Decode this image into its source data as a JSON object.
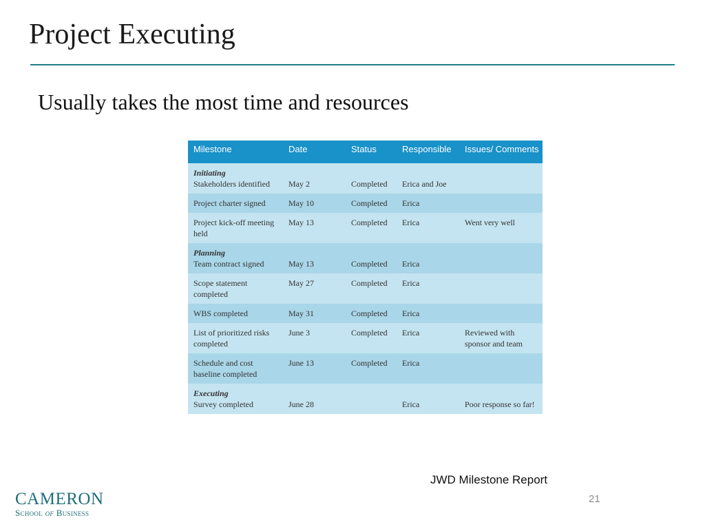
{
  "slide": {
    "title": "Project Executing",
    "subtitle": "Usually takes the most time and resources",
    "caption": "JWD Milestone Report",
    "page_number": "21"
  },
  "logo": {
    "line1": "CAMERON",
    "line2_a": "School",
    "line2_b": "of",
    "line2_c": "Business"
  },
  "table": {
    "headers": [
      "Milestone",
      "Date",
      "Status",
      "Responsible",
      "Issues/ Comments"
    ],
    "rows": [
      {
        "phase": "Initiating",
        "milestone": "Stakeholders identified",
        "date": "May 2",
        "status": "Completed",
        "responsible": "Erica and Joe",
        "comments": ""
      },
      {
        "phase": "",
        "milestone": "Project charter signed",
        "date": "May 10",
        "status": "Completed",
        "responsible": "Erica",
        "comments": ""
      },
      {
        "phase": "",
        "milestone": "Project kick-off meeting held",
        "date": "May 13",
        "status": "Completed",
        "responsible": "Erica",
        "comments": "Went very well"
      },
      {
        "phase": "Planning",
        "milestone": "Team contract signed",
        "date": "May 13",
        "status": "Completed",
        "responsible": "Erica",
        "comments": ""
      },
      {
        "phase": "",
        "milestone": "Scope statement completed",
        "date": "May 27",
        "status": "Completed",
        "responsible": "Erica",
        "comments": ""
      },
      {
        "phase": "",
        "milestone": "WBS completed",
        "date": "May 31",
        "status": "Completed",
        "responsible": "Erica",
        "comments": ""
      },
      {
        "phase": "",
        "milestone": "List of prioritized risks completed",
        "date": "June 3",
        "status": "Completed",
        "responsible": "Erica",
        "comments": "Reviewed with sponsor and team"
      },
      {
        "phase": "",
        "milestone": "Schedule and cost baseline completed",
        "date": "June 13",
        "status": "Completed",
        "responsible": "Erica",
        "comments": ""
      },
      {
        "phase": "Executing",
        "milestone": "Survey completed",
        "date": "June 28",
        "status": "",
        "responsible": "Erica",
        "comments": "Poor response so far!"
      }
    ]
  },
  "colors": {
    "header_bg": "#1991c9",
    "row_light": "#c4e4f1",
    "row_dark": "#a9d6e8",
    "rule": "#1f7f8a",
    "logo": "#1f6f78"
  }
}
